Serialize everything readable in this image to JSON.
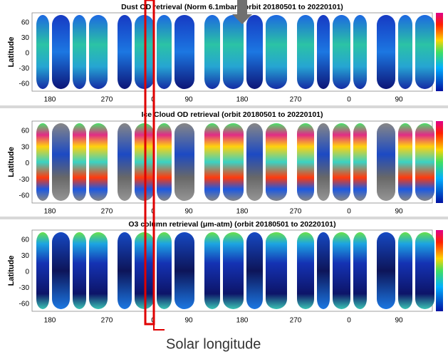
{
  "panels": [
    {
      "title": "Dust OD retrieval (Norm 6.1mbar) (orbit 20180501 to 20220101)",
      "ylabel": "Latitude",
      "yticks": [
        "60",
        "30",
        "0",
        "-30",
        "-60"
      ],
      "xticks": [
        "180",
        "270",
        "0",
        "90",
        "180",
        "270",
        "0",
        "90"
      ]
    },
    {
      "title": "Ice Cloud OD retrieval (orbit 20180501 to 20220101)",
      "ylabel": "Latitude",
      "yticks": [
        "60",
        "30",
        "0",
        "-30",
        "-60"
      ],
      "xticks": [
        "180",
        "270",
        "0",
        "90",
        "180",
        "270",
        "0",
        "90"
      ]
    },
    {
      "title": "O3 column retrieval (μm-atm) (orbit 20180501 to 20220101)",
      "ylabel": "Latitude",
      "yticks": [
        "60",
        "30",
        "0",
        "-30",
        "-60"
      ],
      "xticks": [
        "180",
        "270",
        "0",
        "90",
        "180",
        "270",
        "0",
        "90"
      ]
    }
  ],
  "annotation": "Solar longitude"
}
